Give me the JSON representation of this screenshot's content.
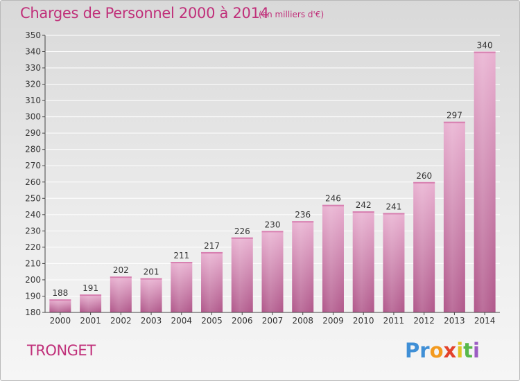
{
  "title": "Charges de Personnel 2000 à 2014",
  "unit_note": "(en milliers d'€)",
  "commune": "TRONGET",
  "logo": {
    "text": "Proxiti",
    "letters": [
      "Pr",
      "o",
      "x",
      "i",
      "t",
      "i"
    ]
  },
  "colors": {
    "title": "#c0307a",
    "bar_light": "#e6a9cc",
    "bar_dark": "#b0578a",
    "axis": "#444444",
    "grid": "#ffffff"
  },
  "chart_data": {
    "type": "bar",
    "categories": [
      "2000",
      "2001",
      "2002",
      "2003",
      "2004",
      "2005",
      "2006",
      "2007",
      "2008",
      "2009",
      "2010",
      "2011",
      "2012",
      "2013",
      "2014"
    ],
    "values": [
      188,
      191,
      202,
      201,
      211,
      217,
      226,
      230,
      236,
      246,
      242,
      241,
      260,
      297,
      340
    ],
    "ylim": [
      180,
      350
    ],
    "yticks": [
      180,
      190,
      200,
      210,
      220,
      230,
      240,
      250,
      260,
      270,
      280,
      290,
      300,
      310,
      320,
      330,
      340,
      350
    ],
    "grid": true,
    "data_labels": true,
    "title": "Charges de Personnel 2000 à 2014",
    "xlabel": "",
    "ylabel": ""
  }
}
